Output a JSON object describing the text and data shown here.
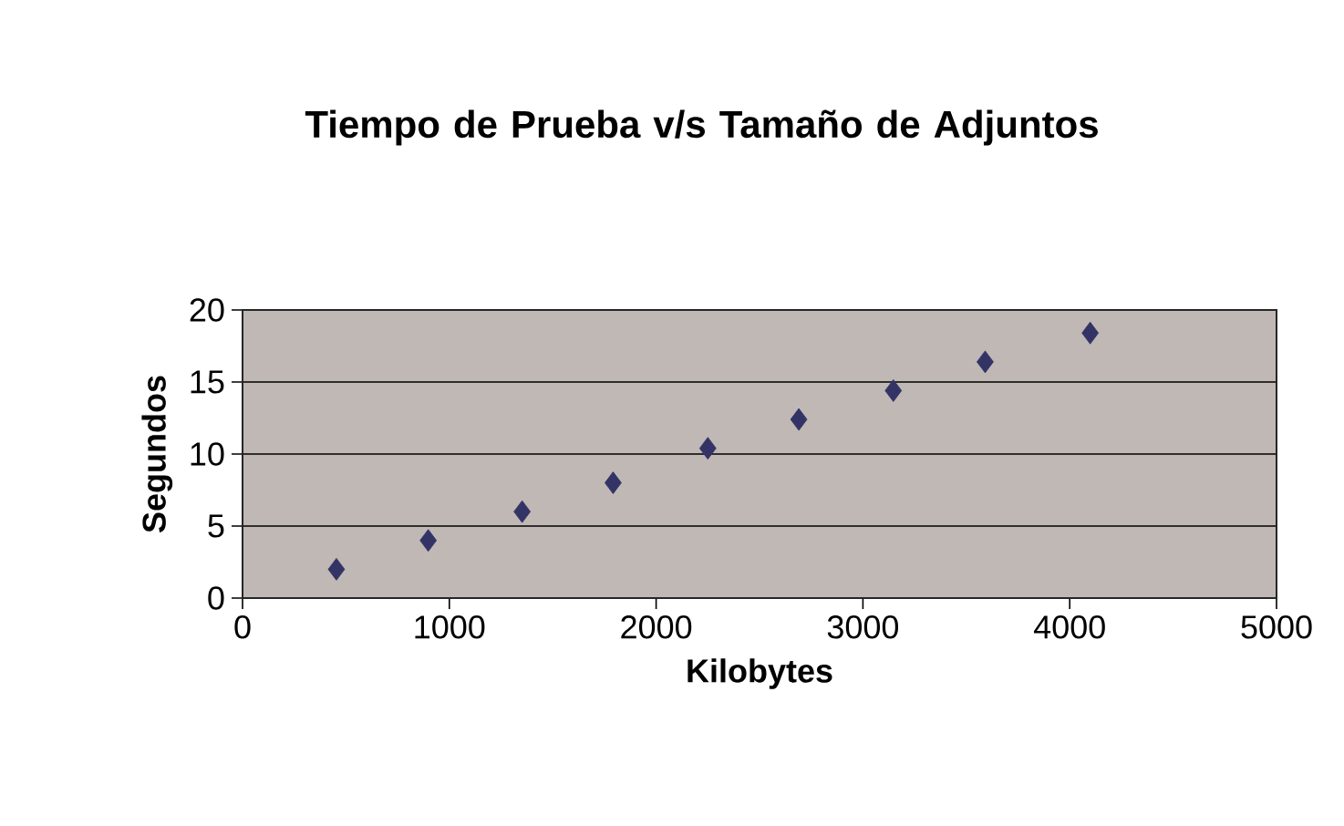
{
  "chart_data": {
    "type": "scatter",
    "title": "Tiempo de Prueba v/s Tamaño de Adjuntos",
    "xlabel": "Kilobytes",
    "ylabel": "Segundos",
    "x": [
      454,
      898,
      1352,
      1792,
      2250,
      2690,
      3147,
      3591,
      4099
    ],
    "series": [
      {
        "color": "#333366",
        "values": [
          2,
          4,
          6,
          8,
          10.4,
          12.4,
          14.4,
          16.4,
          18.4
        ]
      }
    ],
    "xlim": [
      0,
      5000
    ],
    "xticks": [
      0,
      1000,
      2000,
      3000,
      4000,
      5000
    ],
    "ylim": [
      0,
      20
    ],
    "yticks": [
      0,
      5,
      10,
      15,
      20
    ],
    "grid": "y",
    "marker": "diamond"
  }
}
